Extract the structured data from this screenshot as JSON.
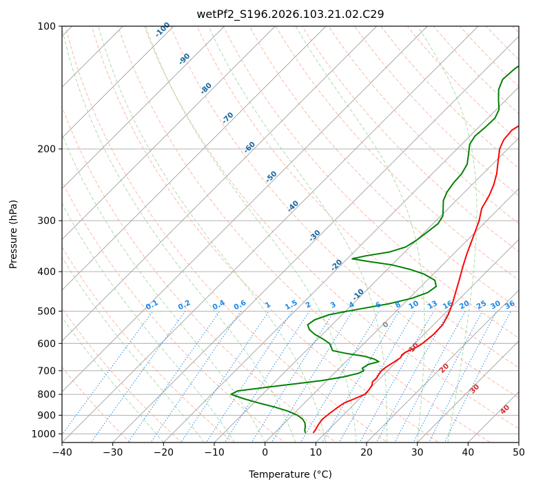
{
  "chart_data": {
    "type": "line",
    "subtype": "skew-t log-p sounding",
    "title": "wetPf2_S196.2026.103.21.02.C29",
    "xlabel": "Temperature (°C)",
    "ylabel": "Pressure (hPa)",
    "xlim": [
      -40,
      50
    ],
    "ylim": [
      1050,
      100
    ],
    "x_ticks": [
      -40,
      -30,
      -20,
      -10,
      0,
      10,
      20,
      30,
      40,
      50
    ],
    "x_tick_labels": [
      "−40",
      "−30",
      "−20",
      "−10",
      "0",
      "10",
      "20",
      "30",
      "40",
      "50"
    ],
    "y_ticks": [
      1000,
      900,
      800,
      700,
      600,
      500,
      400,
      300,
      200,
      100
    ],
    "y_tick_labels": [
      "1000",
      "900",
      "800",
      "700",
      "600",
      "500",
      "400",
      "300",
      "200",
      "100"
    ],
    "colors": {
      "temperature": "#ff0000",
      "dewpoint": "#008000",
      "isotherm": "#9e9e9e",
      "dry_adiabat": "#f7a78d",
      "moist_adiabat": "#8fcf8f",
      "mixing_ratio": "#1e88e5",
      "isobar": "#a8a8a8",
      "wet_bulb_label": "#1565a0",
      "theta_e_label": "#d32f2f"
    },
    "series": [
      {
        "name": "temperature",
        "points": [
          {
            "p": 995,
            "t": 7.6
          },
          {
            "p": 975,
            "t": 7.4
          },
          {
            "p": 950,
            "t": 7.0
          },
          {
            "p": 920,
            "t": 6.7
          },
          {
            "p": 890,
            "t": 7.0
          },
          {
            "p": 860,
            "t": 7.4
          },
          {
            "p": 840,
            "t": 7.8
          },
          {
            "p": 820,
            "t": 9.0
          },
          {
            "p": 800,
            "t": 10.2
          },
          {
            "p": 780,
            "t": 10.1
          },
          {
            "p": 760,
            "t": 9.8
          },
          {
            "p": 745,
            "t": 9.2
          },
          {
            "p": 730,
            "t": 9.3
          },
          {
            "p": 715,
            "t": 9.0
          },
          {
            "p": 700,
            "t": 8.8
          },
          {
            "p": 685,
            "t": 9.0
          },
          {
            "p": 665,
            "t": 9.6
          },
          {
            "p": 650,
            "t": 10.0
          },
          {
            "p": 640,
            "t": 9.7
          },
          {
            "p": 630,
            "t": 9.9
          },
          {
            "p": 615,
            "t": 11.0
          },
          {
            "p": 600,
            "t": 11.5
          },
          {
            "p": 570,
            "t": 11.9
          },
          {
            "p": 540,
            "t": 11.8
          },
          {
            "p": 510,
            "t": 10.9
          },
          {
            "p": 480,
            "t": 9.6
          },
          {
            "p": 450,
            "t": 8.0
          },
          {
            "p": 420,
            "t": 6.3
          },
          {
            "p": 390,
            "t": 4.4
          },
          {
            "p": 360,
            "t": 2.5
          },
          {
            "p": 330,
            "t": 0.6
          },
          {
            "p": 300,
            "t": -1.5
          },
          {
            "p": 280,
            "t": -3.4
          },
          {
            "p": 260,
            "t": -4.5
          },
          {
            "p": 245,
            "t": -5.7
          },
          {
            "p": 230,
            "t": -7.3
          },
          {
            "p": 215,
            "t": -9.4
          },
          {
            "p": 200,
            "t": -11.6
          },
          {
            "p": 190,
            "t": -12.6
          },
          {
            "p": 180,
            "t": -12.9
          },
          {
            "p": 175,
            "t": -12.3
          },
          {
            "p": 165,
            "t": -10.0
          },
          {
            "p": 155,
            "t": -8.0
          },
          {
            "p": 145,
            "t": -6.6
          },
          {
            "p": 135,
            "t": -5.4
          },
          {
            "p": 125,
            "t": -3.3
          },
          {
            "p": 118,
            "t": -0.6
          },
          {
            "p": 112,
            "t": 0.4
          },
          {
            "p": 106,
            "t": 1.3
          },
          {
            "p": 100,
            "t": 2.2
          }
        ]
      },
      {
        "name": "dewpoint",
        "points": [
          {
            "p": 995,
            "t": 6.1
          },
          {
            "p": 980,
            "t": 5.4
          },
          {
            "p": 960,
            "t": 4.8
          },
          {
            "p": 940,
            "t": 4.0
          },
          {
            "p": 920,
            "t": 2.8
          },
          {
            "p": 900,
            "t": 1.0
          },
          {
            "p": 880,
            "t": -1.6
          },
          {
            "p": 860,
            "t": -5.0
          },
          {
            "p": 840,
            "t": -9.0
          },
          {
            "p": 820,
            "t": -12.8
          },
          {
            "p": 800,
            "t": -16.2
          },
          {
            "p": 785,
            "t": -15.6
          },
          {
            "p": 770,
            "t": -11.0
          },
          {
            "p": 755,
            "t": -6.0
          },
          {
            "p": 740,
            "t": -1.0
          },
          {
            "p": 725,
            "t": 2.5
          },
          {
            "p": 710,
            "t": 4.8
          },
          {
            "p": 700,
            "t": 5.3
          },
          {
            "p": 690,
            "t": 4.5
          },
          {
            "p": 675,
            "t": 5.0
          },
          {
            "p": 665,
            "t": 6.5
          },
          {
            "p": 655,
            "t": 5.0
          },
          {
            "p": 645,
            "t": 2.5
          },
          {
            "p": 635,
            "t": -1.5
          },
          {
            "p": 625,
            "t": -4.8
          },
          {
            "p": 612,
            "t": -5.8
          },
          {
            "p": 600,
            "t": -6.8
          },
          {
            "p": 585,
            "t": -9.0
          },
          {
            "p": 570,
            "t": -11.5
          },
          {
            "p": 555,
            "t": -13.5
          },
          {
            "p": 540,
            "t": -14.8
          },
          {
            "p": 525,
            "t": -14.4
          },
          {
            "p": 510,
            "t": -12.5
          },
          {
            "p": 495,
            "t": -8.0
          },
          {
            "p": 480,
            "t": -3.0
          },
          {
            "p": 465,
            "t": 0.5
          },
          {
            "p": 450,
            "t": 2.5
          },
          {
            "p": 435,
            "t": 3.0
          },
          {
            "p": 420,
            "t": 1.5
          },
          {
            "p": 405,
            "t": -2.0
          },
          {
            "p": 395,
            "t": -5.5
          },
          {
            "p": 385,
            "t": -10.0
          },
          {
            "p": 378,
            "t": -15.0
          },
          {
            "p": 372,
            "t": -19.0
          },
          {
            "p": 366,
            "t": -17.0
          },
          {
            "p": 358,
            "t": -13.0
          },
          {
            "p": 348,
            "t": -10.8
          },
          {
            "p": 335,
            "t": -10.0
          },
          {
            "p": 320,
            "t": -9.5
          },
          {
            "p": 305,
            "t": -9.0
          },
          {
            "p": 292,
            "t": -9.6
          },
          {
            "p": 280,
            "t": -11.0
          },
          {
            "p": 268,
            "t": -12.5
          },
          {
            "p": 255,
            "t": -13.5
          },
          {
            "p": 242,
            "t": -14.0
          },
          {
            "p": 230,
            "t": -14.2
          },
          {
            "p": 218,
            "t": -15.0
          },
          {
            "p": 206,
            "t": -16.7
          },
          {
            "p": 195,
            "t": -18.4
          },
          {
            "p": 186,
            "t": -19.0
          },
          {
            "p": 177,
            "t": -18.7
          },
          {
            "p": 168,
            "t": -18.6
          },
          {
            "p": 160,
            "t": -19.5
          },
          {
            "p": 152,
            "t": -21.4
          },
          {
            "p": 143,
            "t": -23.5
          },
          {
            "p": 135,
            "t": -24.7
          },
          {
            "p": 127,
            "t": -24.4
          },
          {
            "p": 120,
            "t": -23.3
          },
          {
            "p": 113,
            "t": -22.0
          },
          {
            "p": 106,
            "t": -20.6
          },
          {
            "p": 100,
            "t": -19.3
          }
        ]
      }
    ],
    "isotherm_labels": [
      "-100",
      "-90",
      "-80",
      "-70",
      "-60",
      "-50",
      "-40",
      "-30",
      "-20",
      "-10",
      "0",
      "10",
      "20",
      "30",
      "40"
    ],
    "mixing_ratio_labels": [
      "0.1",
      "0.2",
      "0.4",
      "0.6",
      "1",
      "1.5",
      "2",
      "3",
      "4",
      "6",
      "8",
      "10",
      "13",
      "16",
      "20",
      "25",
      "30",
      "36"
    ]
  }
}
